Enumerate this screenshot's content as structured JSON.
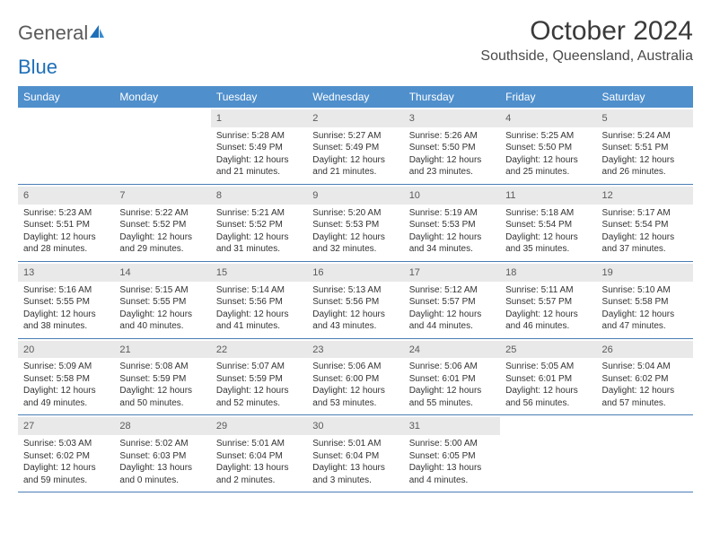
{
  "logo": {
    "general": "General",
    "blue": "Blue"
  },
  "title": "October 2024",
  "location": "Southside, Queensland, Australia",
  "colors": {
    "header_bg": "#4f8fcc",
    "header_text": "#ffffff",
    "daynum_bg": "#e9e9e9",
    "week_border": "#4a7db5",
    "logo_gray": "#5a5a5a",
    "logo_blue": "#1e6fb8"
  },
  "day_names": [
    "Sunday",
    "Monday",
    "Tuesday",
    "Wednesday",
    "Thursday",
    "Friday",
    "Saturday"
  ],
  "weeks": [
    [
      {
        "n": "",
        "sr": "",
        "ss": "",
        "dl1": "",
        "dl2": ""
      },
      {
        "n": "",
        "sr": "",
        "ss": "",
        "dl1": "",
        "dl2": ""
      },
      {
        "n": "1",
        "sr": "Sunrise: 5:28 AM",
        "ss": "Sunset: 5:49 PM",
        "dl1": "Daylight: 12 hours",
        "dl2": "and 21 minutes."
      },
      {
        "n": "2",
        "sr": "Sunrise: 5:27 AM",
        "ss": "Sunset: 5:49 PM",
        "dl1": "Daylight: 12 hours",
        "dl2": "and 21 minutes."
      },
      {
        "n": "3",
        "sr": "Sunrise: 5:26 AM",
        "ss": "Sunset: 5:50 PM",
        "dl1": "Daylight: 12 hours",
        "dl2": "and 23 minutes."
      },
      {
        "n": "4",
        "sr": "Sunrise: 5:25 AM",
        "ss": "Sunset: 5:50 PM",
        "dl1": "Daylight: 12 hours",
        "dl2": "and 25 minutes."
      },
      {
        "n": "5",
        "sr": "Sunrise: 5:24 AM",
        "ss": "Sunset: 5:51 PM",
        "dl1": "Daylight: 12 hours",
        "dl2": "and 26 minutes."
      }
    ],
    [
      {
        "n": "6",
        "sr": "Sunrise: 5:23 AM",
        "ss": "Sunset: 5:51 PM",
        "dl1": "Daylight: 12 hours",
        "dl2": "and 28 minutes."
      },
      {
        "n": "7",
        "sr": "Sunrise: 5:22 AM",
        "ss": "Sunset: 5:52 PM",
        "dl1": "Daylight: 12 hours",
        "dl2": "and 29 minutes."
      },
      {
        "n": "8",
        "sr": "Sunrise: 5:21 AM",
        "ss": "Sunset: 5:52 PM",
        "dl1": "Daylight: 12 hours",
        "dl2": "and 31 minutes."
      },
      {
        "n": "9",
        "sr": "Sunrise: 5:20 AM",
        "ss": "Sunset: 5:53 PM",
        "dl1": "Daylight: 12 hours",
        "dl2": "and 32 minutes."
      },
      {
        "n": "10",
        "sr": "Sunrise: 5:19 AM",
        "ss": "Sunset: 5:53 PM",
        "dl1": "Daylight: 12 hours",
        "dl2": "and 34 minutes."
      },
      {
        "n": "11",
        "sr": "Sunrise: 5:18 AM",
        "ss": "Sunset: 5:54 PM",
        "dl1": "Daylight: 12 hours",
        "dl2": "and 35 minutes."
      },
      {
        "n": "12",
        "sr": "Sunrise: 5:17 AM",
        "ss": "Sunset: 5:54 PM",
        "dl1": "Daylight: 12 hours",
        "dl2": "and 37 minutes."
      }
    ],
    [
      {
        "n": "13",
        "sr": "Sunrise: 5:16 AM",
        "ss": "Sunset: 5:55 PM",
        "dl1": "Daylight: 12 hours",
        "dl2": "and 38 minutes."
      },
      {
        "n": "14",
        "sr": "Sunrise: 5:15 AM",
        "ss": "Sunset: 5:55 PM",
        "dl1": "Daylight: 12 hours",
        "dl2": "and 40 minutes."
      },
      {
        "n": "15",
        "sr": "Sunrise: 5:14 AM",
        "ss": "Sunset: 5:56 PM",
        "dl1": "Daylight: 12 hours",
        "dl2": "and 41 minutes."
      },
      {
        "n": "16",
        "sr": "Sunrise: 5:13 AM",
        "ss": "Sunset: 5:56 PM",
        "dl1": "Daylight: 12 hours",
        "dl2": "and 43 minutes."
      },
      {
        "n": "17",
        "sr": "Sunrise: 5:12 AM",
        "ss": "Sunset: 5:57 PM",
        "dl1": "Daylight: 12 hours",
        "dl2": "and 44 minutes."
      },
      {
        "n": "18",
        "sr": "Sunrise: 5:11 AM",
        "ss": "Sunset: 5:57 PM",
        "dl1": "Daylight: 12 hours",
        "dl2": "and 46 minutes."
      },
      {
        "n": "19",
        "sr": "Sunrise: 5:10 AM",
        "ss": "Sunset: 5:58 PM",
        "dl1": "Daylight: 12 hours",
        "dl2": "and 47 minutes."
      }
    ],
    [
      {
        "n": "20",
        "sr": "Sunrise: 5:09 AM",
        "ss": "Sunset: 5:58 PM",
        "dl1": "Daylight: 12 hours",
        "dl2": "and 49 minutes."
      },
      {
        "n": "21",
        "sr": "Sunrise: 5:08 AM",
        "ss": "Sunset: 5:59 PM",
        "dl1": "Daylight: 12 hours",
        "dl2": "and 50 minutes."
      },
      {
        "n": "22",
        "sr": "Sunrise: 5:07 AM",
        "ss": "Sunset: 5:59 PM",
        "dl1": "Daylight: 12 hours",
        "dl2": "and 52 minutes."
      },
      {
        "n": "23",
        "sr": "Sunrise: 5:06 AM",
        "ss": "Sunset: 6:00 PM",
        "dl1": "Daylight: 12 hours",
        "dl2": "and 53 minutes."
      },
      {
        "n": "24",
        "sr": "Sunrise: 5:06 AM",
        "ss": "Sunset: 6:01 PM",
        "dl1": "Daylight: 12 hours",
        "dl2": "and 55 minutes."
      },
      {
        "n": "25",
        "sr": "Sunrise: 5:05 AM",
        "ss": "Sunset: 6:01 PM",
        "dl1": "Daylight: 12 hours",
        "dl2": "and 56 minutes."
      },
      {
        "n": "26",
        "sr": "Sunrise: 5:04 AM",
        "ss": "Sunset: 6:02 PM",
        "dl1": "Daylight: 12 hours",
        "dl2": "and 57 minutes."
      }
    ],
    [
      {
        "n": "27",
        "sr": "Sunrise: 5:03 AM",
        "ss": "Sunset: 6:02 PM",
        "dl1": "Daylight: 12 hours",
        "dl2": "and 59 minutes."
      },
      {
        "n": "28",
        "sr": "Sunrise: 5:02 AM",
        "ss": "Sunset: 6:03 PM",
        "dl1": "Daylight: 13 hours",
        "dl2": "and 0 minutes."
      },
      {
        "n": "29",
        "sr": "Sunrise: 5:01 AM",
        "ss": "Sunset: 6:04 PM",
        "dl1": "Daylight: 13 hours",
        "dl2": "and 2 minutes."
      },
      {
        "n": "30",
        "sr": "Sunrise: 5:01 AM",
        "ss": "Sunset: 6:04 PM",
        "dl1": "Daylight: 13 hours",
        "dl2": "and 3 minutes."
      },
      {
        "n": "31",
        "sr": "Sunrise: 5:00 AM",
        "ss": "Sunset: 6:05 PM",
        "dl1": "Daylight: 13 hours",
        "dl2": "and 4 minutes."
      },
      {
        "n": "",
        "sr": "",
        "ss": "",
        "dl1": "",
        "dl2": ""
      },
      {
        "n": "",
        "sr": "",
        "ss": "",
        "dl1": "",
        "dl2": ""
      }
    ]
  ]
}
